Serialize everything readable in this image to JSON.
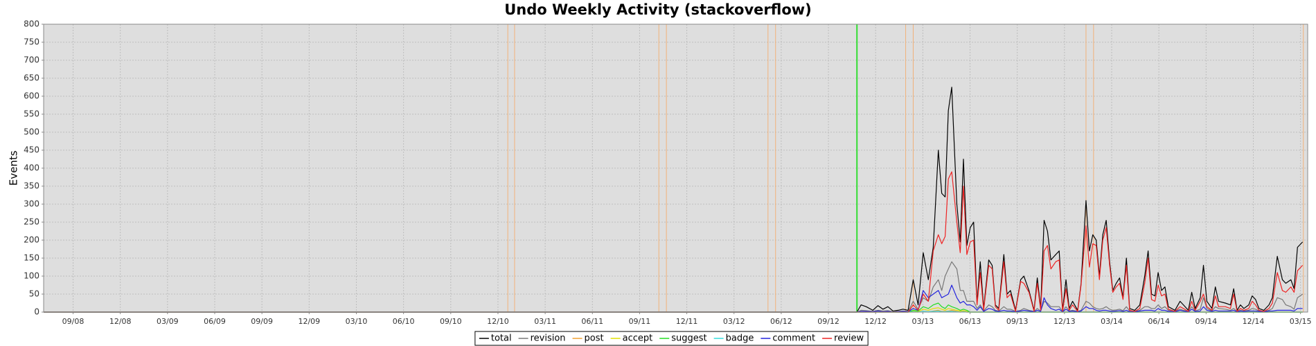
{
  "chart_data": {
    "type": "line",
    "title": "Undo Weekly Activity (stackoverflow)",
    "y_label": "Events",
    "xlim": [
      2008.511,
      2015.205
    ],
    "ylim": [
      0,
      800
    ],
    "yticks": [
      0,
      50,
      100,
      150,
      200,
      250,
      300,
      350,
      400,
      450,
      500,
      550,
      600,
      650,
      700,
      750,
      800
    ],
    "xticks": [
      {
        "value": 2008.667,
        "label": "09/08"
      },
      {
        "value": 2008.917,
        "label": "12/08"
      },
      {
        "value": 2009.167,
        "label": "03/09"
      },
      {
        "value": 2009.417,
        "label": "06/09"
      },
      {
        "value": 2009.667,
        "label": "09/09"
      },
      {
        "value": 2009.917,
        "label": "12/09"
      },
      {
        "value": 2010.167,
        "label": "03/10"
      },
      {
        "value": 2010.417,
        "label": "06/10"
      },
      {
        "value": 2010.667,
        "label": "09/10"
      },
      {
        "value": 2010.917,
        "label": "12/10"
      },
      {
        "value": 2011.167,
        "label": "03/11"
      },
      {
        "value": 2011.417,
        "label": "06/11"
      },
      {
        "value": 2011.667,
        "label": "09/11"
      },
      {
        "value": 2011.917,
        "label": "12/11"
      },
      {
        "value": 2012.167,
        "label": "03/12"
      },
      {
        "value": 2012.417,
        "label": "06/12"
      },
      {
        "value": 2012.667,
        "label": "09/12"
      },
      {
        "value": 2012.917,
        "label": "12/12"
      },
      {
        "value": 2013.167,
        "label": "03/13"
      },
      {
        "value": 2013.417,
        "label": "06/13"
      },
      {
        "value": 2013.667,
        "label": "09/13"
      },
      {
        "value": 2013.917,
        "label": "12/13"
      },
      {
        "value": 2014.167,
        "label": "03/14"
      },
      {
        "value": 2014.417,
        "label": "06/14"
      },
      {
        "value": 2014.667,
        "label": "09/14"
      },
      {
        "value": 2014.917,
        "label": "12/14"
      },
      {
        "value": 2015.167,
        "label": "03/15"
      }
    ],
    "grid": true,
    "legend": "bottom",
    "markers": [
      {
        "x": 2010.969,
        "color": "#f2b27a"
      },
      {
        "x": 2011.005,
        "color": "#f2b27a"
      },
      {
        "x": 2011.769,
        "color": "#f2b27a"
      },
      {
        "x": 2011.809,
        "color": "#f2b27a"
      },
      {
        "x": 2012.347,
        "color": "#f2b27a"
      },
      {
        "x": 2012.387,
        "color": "#f2b27a"
      },
      {
        "x": 2012.818,
        "color": "#33dd33"
      },
      {
        "x": 2013.076,
        "color": "#f2b27a"
      },
      {
        "x": 2013.116,
        "color": "#f2b27a"
      },
      {
        "x": 2014.031,
        "color": "#f2b27a"
      },
      {
        "x": 2014.071,
        "color": "#f2b27a"
      },
      {
        "x": 2015.182,
        "color": "#f2b27a"
      }
    ],
    "x": [
      2008.511,
      2012.818,
      2012.84,
      2012.867,
      2012.902,
      2012.929,
      2012.956,
      2012.982,
      2013.009,
      2013.036,
      2013.062,
      2013.089,
      2013.116,
      2013.142,
      2013.169,
      2013.196,
      2013.222,
      2013.249,
      2013.267,
      2013.285,
      2013.302,
      2013.32,
      2013.347,
      2013.365,
      2013.382,
      2013.4,
      2013.418,
      2013.436,
      2013.454,
      2013.471,
      2013.489,
      2013.516,
      2013.534,
      2013.551,
      2013.569,
      2013.596,
      2013.613,
      2013.631,
      2013.658,
      2013.685,
      2013.702,
      2013.729,
      2013.756,
      2013.773,
      2013.791,
      2013.809,
      2013.827,
      2013.845,
      2013.871,
      2013.889,
      2013.907,
      2013.925,
      2013.942,
      2013.96,
      2013.987,
      2014.005,
      2014.031,
      2014.049,
      2014.067,
      2014.085,
      2014.102,
      2014.12,
      2014.138,
      2014.156,
      2014.173,
      2014.191,
      2014.209,
      2014.227,
      2014.245,
      2014.262,
      2014.289,
      2014.316,
      2014.342,
      2014.36,
      2014.378,
      2014.396,
      2014.413,
      2014.431,
      2014.449,
      2014.467,
      2014.502,
      2014.529,
      2014.547,
      2014.573,
      2014.591,
      2014.609,
      2014.636,
      2014.653,
      2014.671,
      2014.698,
      2014.716,
      2014.733,
      2014.769,
      2014.796,
      2014.813,
      2014.831,
      2014.849,
      2014.867,
      2014.893,
      2014.911,
      2014.929,
      2014.947,
      2014.973,
      2015.0,
      2015.018,
      2015.044,
      2015.071,
      2015.089,
      2015.116,
      2015.133,
      2015.151,
      2015.178
    ],
    "series": [
      {
        "name": "total",
        "color": "#000000",
        "values": [
          0,
          0,
          20,
          15,
          5,
          18,
          8,
          15,
          3,
          5,
          8,
          5,
          90,
          20,
          165,
          90,
          180,
          450,
          330,
          320,
          560,
          625,
          300,
          195,
          425,
          185,
          235,
          250,
          25,
          140,
          10,
          145,
          130,
          20,
          10,
          160,
          50,
          60,
          5,
          90,
          100,
          60,
          5,
          95,
          10,
          255,
          225,
          145,
          160,
          170,
          5,
          90,
          10,
          30,
          5,
          80,
          310,
          170,
          215,
          200,
          100,
          215,
          255,
          140,
          60,
          80,
          95,
          40,
          150,
          10,
          5,
          20,
          100,
          170,
          50,
          45,
          110,
          60,
          70,
          15,
          5,
          30,
          20,
          5,
          55,
          10,
          40,
          130,
          30,
          10,
          70,
          30,
          25,
          20,
          65,
          5,
          20,
          10,
          20,
          45,
          35,
          10,
          5,
          20,
          40,
          155,
          90,
          80,
          90,
          65,
          180,
          195
        ]
      },
      {
        "name": "revision",
        "color": "#777777",
        "values": [
          0,
          0,
          5,
          4,
          2,
          5,
          3,
          4,
          1,
          2,
          3,
          2,
          30,
          8,
          40,
          30,
          70,
          90,
          60,
          100,
          120,
          140,
          120,
          60,
          60,
          30,
          30,
          30,
          10,
          20,
          3,
          20,
          15,
          5,
          3,
          15,
          8,
          8,
          2,
          5,
          10,
          5,
          2,
          10,
          3,
          30,
          25,
          15,
          15,
          15,
          2,
          15,
          3,
          5,
          2,
          5,
          30,
          25,
          15,
          10,
          8,
          10,
          15,
          8,
          5,
          6,
          8,
          4,
          15,
          3,
          2,
          5,
          15,
          15,
          10,
          10,
          20,
          10,
          15,
          5,
          2,
          8,
          5,
          2,
          15,
          3,
          8,
          40,
          10,
          3,
          15,
          10,
          8,
          5,
          10,
          2,
          5,
          3,
          5,
          10,
          8,
          3,
          2,
          5,
          10,
          40,
          35,
          20,
          15,
          8,
          40,
          50
        ]
      },
      {
        "name": "post",
        "color": "#f0a030",
        "values": [
          0,
          0,
          0,
          0,
          0,
          0,
          0,
          0,
          0,
          0,
          0,
          0,
          0,
          0,
          2,
          0,
          3,
          5,
          2,
          2,
          3,
          5,
          2,
          0,
          2,
          0,
          0,
          0,
          0,
          0,
          0,
          0,
          0,
          0,
          0,
          0,
          0,
          0,
          0,
          0,
          0,
          0,
          0,
          0,
          0,
          0,
          0,
          0,
          0,
          0,
          0,
          0,
          0,
          0,
          0,
          0,
          0,
          0,
          0,
          0,
          0,
          0,
          0,
          0,
          0,
          0,
          0,
          0,
          0,
          0,
          0,
          0,
          0,
          0,
          0,
          0,
          0,
          0,
          0,
          0,
          0,
          0,
          0,
          0,
          0,
          0,
          0,
          0,
          0,
          0,
          0,
          0,
          0,
          0,
          0,
          0,
          0,
          0,
          0,
          0,
          0,
          0,
          0,
          0,
          0,
          0,
          0,
          0,
          0,
          0,
          0,
          0
        ]
      },
      {
        "name": "accept",
        "color": "#e0e000",
        "values": [
          0,
          0,
          0,
          0,
          0,
          0,
          0,
          0,
          0,
          0,
          0,
          0,
          2,
          1,
          8,
          5,
          10,
          12,
          8,
          5,
          10,
          8,
          5,
          3,
          4,
          2,
          0,
          0,
          0,
          0,
          0,
          0,
          0,
          0,
          0,
          0,
          0,
          0,
          0,
          0,
          0,
          0,
          0,
          0,
          0,
          0,
          0,
          0,
          0,
          0,
          0,
          0,
          0,
          0,
          0,
          0,
          0,
          0,
          0,
          0,
          0,
          0,
          0,
          0,
          0,
          0,
          0,
          0,
          0,
          0,
          0,
          0,
          0,
          0,
          0,
          0,
          0,
          0,
          0,
          0,
          0,
          0,
          0,
          0,
          0,
          0,
          0,
          0,
          0,
          0,
          0,
          0,
          0,
          0,
          0,
          0,
          0,
          0,
          0,
          0,
          0,
          0,
          0,
          0,
          0,
          0,
          0,
          0,
          0,
          0,
          0,
          0
        ]
      },
      {
        "name": "suggest",
        "color": "#22dd22",
        "values": [
          0,
          0,
          0,
          0,
          0,
          0,
          0,
          0,
          0,
          0,
          0,
          0,
          5,
          3,
          15,
          10,
          20,
          25,
          15,
          10,
          20,
          15,
          10,
          5,
          8,
          5,
          0,
          0,
          0,
          0,
          0,
          0,
          0,
          0,
          0,
          0,
          0,
          0,
          0,
          0,
          0,
          0,
          0,
          0,
          0,
          0,
          0,
          0,
          0,
          0,
          0,
          0,
          0,
          0,
          0,
          0,
          0,
          0,
          0,
          0,
          0,
          0,
          0,
          0,
          0,
          0,
          0,
          0,
          0,
          0,
          0,
          0,
          0,
          0,
          0,
          0,
          0,
          0,
          0,
          0,
          0,
          0,
          0,
          0,
          0,
          0,
          0,
          0,
          0,
          0,
          0,
          0,
          0,
          0,
          0,
          0,
          0,
          0,
          0,
          0,
          0,
          0,
          0,
          0,
          0,
          0,
          0,
          0,
          0,
          0,
          0,
          0
        ]
      },
      {
        "name": "badge",
        "color": "#33dddd",
        "values": [
          0,
          0,
          0,
          0,
          0,
          0,
          0,
          0,
          0,
          0,
          0,
          0,
          1,
          0,
          2,
          1,
          2,
          3,
          1,
          1,
          2,
          2,
          1,
          0,
          1,
          0,
          0,
          0,
          0,
          0,
          0,
          0,
          0,
          0,
          0,
          0,
          0,
          0,
          0,
          0,
          0,
          0,
          0,
          0,
          0,
          0,
          0,
          0,
          0,
          0,
          0,
          0,
          0,
          0,
          0,
          0,
          0,
          0,
          0,
          0,
          0,
          0,
          0,
          0,
          0,
          0,
          0,
          0,
          0,
          0,
          0,
          0,
          0,
          0,
          0,
          0,
          0,
          0,
          0,
          0,
          0,
          0,
          0,
          0,
          0,
          0,
          0,
          0,
          0,
          0,
          0,
          0,
          0,
          0,
          0,
          0,
          0,
          0,
          0,
          0,
          0,
          0,
          0,
          0,
          0,
          0,
          0,
          0,
          0,
          0,
          0,
          0
        ]
      },
      {
        "name": "comment",
        "color": "#2222dd",
        "values": [
          0,
          0,
          2,
          2,
          1,
          3,
          1,
          2,
          0,
          1,
          2,
          1,
          10,
          5,
          60,
          40,
          50,
          60,
          40,
          45,
          50,
          75,
          40,
          25,
          30,
          20,
          20,
          15,
          5,
          15,
          2,
          10,
          8,
          3,
          2,
          5,
          3,
          3,
          1,
          3,
          5,
          3,
          1,
          5,
          2,
          40,
          20,
          10,
          5,
          8,
          1,
          8,
          2,
          3,
          1,
          3,
          15,
          10,
          10,
          5,
          3,
          5,
          5,
          3,
          2,
          3,
          4,
          2,
          5,
          1,
          1,
          3,
          5,
          5,
          5,
          3,
          10,
          5,
          5,
          2,
          1,
          5,
          3,
          1,
          8,
          2,
          3,
          15,
          5,
          2,
          5,
          3,
          3,
          3,
          5,
          1,
          3,
          2,
          3,
          3,
          3,
          2,
          1,
          3,
          3,
          5,
          5,
          5,
          5,
          3,
          10,
          10
        ]
      },
      {
        "name": "review",
        "color": "#ee2222",
        "values": [
          0,
          0,
          0,
          0,
          0,
          0,
          0,
          0,
          0,
          0,
          0,
          0,
          20,
          5,
          50,
          30,
          170,
          215,
          190,
          210,
          370,
          390,
          250,
          165,
          350,
          160,
          195,
          200,
          20,
          110,
          5,
          130,
          120,
          15,
          5,
          140,
          40,
          50,
          2,
          85,
          80,
          55,
          2,
          80,
          5,
          170,
          185,
          120,
          140,
          145,
          2,
          65,
          5,
          20,
          2,
          75,
          240,
          125,
          190,
          185,
          90,
          200,
          235,
          130,
          55,
          70,
          80,
          35,
          130,
          5,
          2,
          10,
          80,
          150,
          35,
          30,
          75,
          45,
          50,
          8,
          2,
          15,
          10,
          2,
          30,
          5,
          30,
          50,
          15,
          5,
          45,
          15,
          15,
          10,
          50,
          2,
          10,
          5,
          10,
          30,
          20,
          5,
          2,
          10,
          25,
          110,
          60,
          55,
          70,
          55,
          115,
          130
        ]
      }
    ]
  }
}
